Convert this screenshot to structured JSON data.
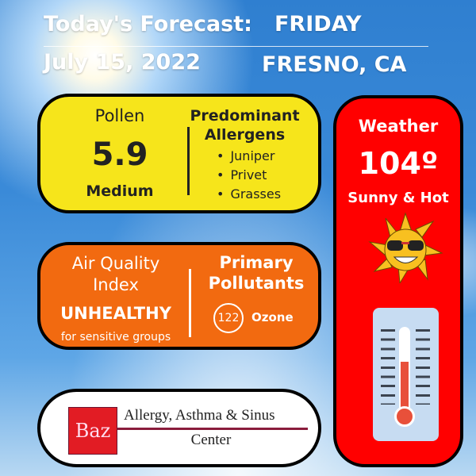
{
  "header": {
    "title": "Today's Forecast:",
    "day": "FRIDAY",
    "date": "July 15, 2022",
    "location": "FRESNO, CA"
  },
  "pollen": {
    "label": "Pollen",
    "value": "5.9",
    "level": "Medium",
    "allergens_title_1": "Predominant",
    "allergens_title_2": "Allergens",
    "allergens": [
      "Juniper",
      "Privet",
      "Grasses"
    ],
    "color": "#f6e51b"
  },
  "air_quality": {
    "label_1": "Air Quality",
    "label_2": "Index",
    "status": "UNHEALTHY",
    "note": "for sensitive groups",
    "pollutants_title_1": "Primary",
    "pollutants_title_2": "Pollutants",
    "aqi": "122",
    "pollutant": "Ozone",
    "color": "#f26a10"
  },
  "weather": {
    "label": "Weather",
    "temperature": "104º",
    "condition": "Sunny & Hot",
    "color": "#ff0000",
    "thermometer_fill_percent": 60
  },
  "logo": {
    "mark": "Baz",
    "line1": "Allergy, Asthma & Sinus",
    "line2": "Center"
  }
}
